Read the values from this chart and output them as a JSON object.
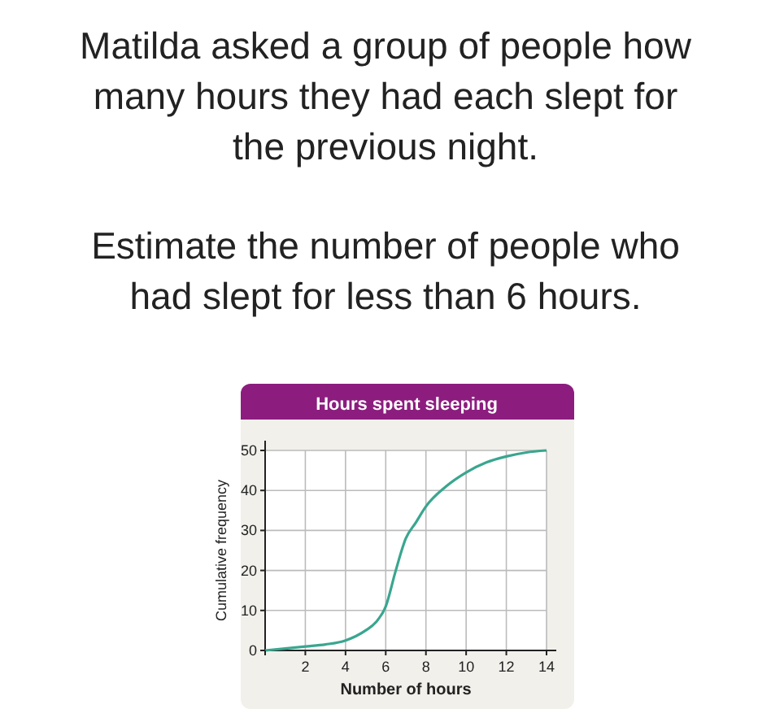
{
  "chart_data": {
    "type": "line",
    "title": "Hours spent sleeping",
    "xlabel": "Number of hours",
    "ylabel": "Cumulative frequency",
    "annotations": [
      "Matilda asked a group of people how many hours they had each slept for the previous night.",
      "Estimate the number of people who had slept for less than 6 hours."
    ],
    "x": [
      0,
      1,
      2,
      3,
      4,
      5,
      5.5,
      6,
      6.5,
      7,
      7.5,
      8,
      9,
      10,
      11,
      12,
      13,
      14
    ],
    "series": [
      {
        "color": "#3aa68f",
        "values": [
          0,
          0.5,
          1,
          1.5,
          2.5,
          5,
          7,
          11,
          20,
          28,
          32,
          36,
          41,
          44.5,
          47,
          48.5,
          49.5,
          50
        ]
      }
    ],
    "xlim": [
      0,
      14
    ],
    "ylim": [
      0,
      50
    ],
    "xticks": [
      {
        "value": 0,
        "label": null
      },
      2,
      4,
      6,
      8,
      10,
      12,
      14
    ],
    "yticks": [
      0,
      10,
      20,
      30,
      40,
      50
    ],
    "grid": true,
    "marker": "none",
    "line_style": "solid"
  }
}
